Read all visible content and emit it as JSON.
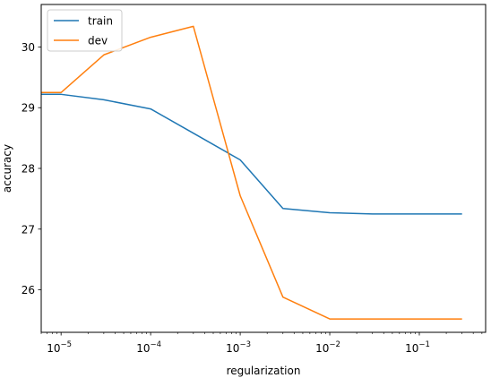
{
  "chart_data": {
    "type": "line",
    "xscale": "log",
    "xlabel": "regularization",
    "ylabel": "accuracy",
    "xlim": [
      6e-06,
      0.55
    ],
    "ylim": [
      25.3,
      30.7
    ],
    "x": [
      1e-06,
      1e-05,
      3e-05,
      0.0001,
      0.0003,
      0.001,
      0.003,
      0.01,
      0.03,
      0.1,
      0.3
    ],
    "series": [
      {
        "name": "train",
        "color": "#1f77b4",
        "values": [
          29.22,
          29.22,
          29.13,
          28.98,
          28.58,
          28.14,
          27.34,
          27.27,
          27.25,
          27.25,
          27.25
        ]
      },
      {
        "name": "dev",
        "color": "#ff7f0e",
        "values": [
          29.25,
          29.25,
          29.87,
          30.16,
          30.34,
          27.55,
          25.88,
          25.52,
          25.52,
          25.52,
          25.52
        ]
      }
    ],
    "xticks": [
      {
        "value": 1e-05,
        "base": "10",
        "exp": "−5"
      },
      {
        "value": 0.0001,
        "base": "10",
        "exp": "−4"
      },
      {
        "value": 0.001,
        "base": "10",
        "exp": "−3"
      },
      {
        "value": 0.01,
        "base": "10",
        "exp": "−2"
      },
      {
        "value": 0.1,
        "base": "10",
        "exp": "−1"
      }
    ],
    "yticks": [
      26,
      27,
      28,
      29,
      30
    ],
    "grid": false,
    "legend": "top-left"
  }
}
